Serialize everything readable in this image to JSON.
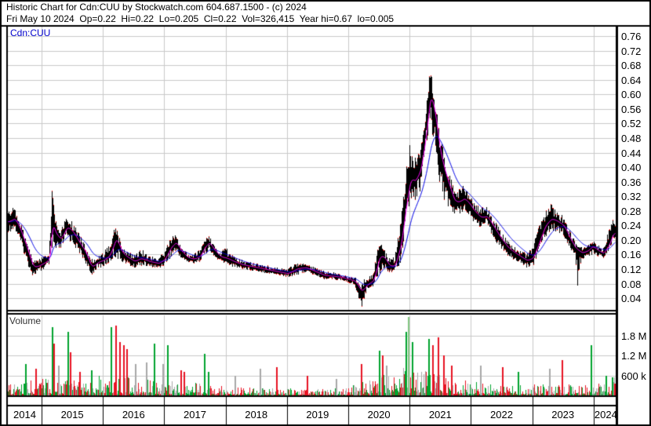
{
  "header": {
    "line1": "Historic Chart for Cdn:CUU by Stockwatch.com 604.687.1500 - (c) 2024",
    "line2": "Fri May 10 2024  Op=0.22  Hi=0.22  Lo=0.205  Cl=0.22  Vol=326,415  Year hi=0.67  lo=0.005"
  },
  "price_panel": {
    "symbol_label": "Cdn:CUU",
    "tick_labels": [
      "0.76",
      "0.72",
      "0.68",
      "0.64",
      "0.60",
      "0.56",
      "0.52",
      "0.48",
      "0.44",
      "0.40",
      "0.36",
      "0.32",
      "0.28",
      "0.24",
      "0.20",
      "0.16",
      "0.12",
      "0.08",
      "0.04"
    ]
  },
  "volume_panel": {
    "label": "Volume",
    "tick_labels": [
      "1.8 M",
      "1.2 M",
      "600 k"
    ]
  },
  "x_axis": {
    "years": [
      "2014",
      "2015",
      "2016",
      "2017",
      "2018",
      "2019",
      "2020",
      "2021",
      "2022",
      "2023",
      "2024"
    ]
  },
  "colors": {
    "grid": "#c9c9c9",
    "border": "#000000",
    "bar": "#000000",
    "close_tick": "#ff0000",
    "ma_fast": "#ff00ff",
    "ma_slow": "#0000e6",
    "vol_green": "#00a32e",
    "vol_red": "#e81222",
    "vol_gray": "#a8a8a8",
    "vol_lightgreen": "#84c883",
    "symbol": "#0000cc"
  },
  "chart_data": {
    "type": "ohlc-with-volume",
    "title": "Historic Chart for Cdn:CUU by Stockwatch.com 604.687.1500 - (c) 2024",
    "last_bar": {
      "date": "Fri May 10 2024",
      "open": 0.22,
      "high": 0.22,
      "low": 0.205,
      "close": 0.22,
      "volume": 326415,
      "year_hi": 0.67,
      "year_lo": 0.005
    },
    "x_axis": {
      "unit": "decimal_year",
      "start": 2014.45,
      "end": 2024.37,
      "year_gridlines": [
        2015,
        2016,
        2017,
        2018,
        2019,
        2020,
        2021,
        2022,
        2023,
        2024
      ]
    },
    "price_axis": {
      "min": 0,
      "max": 0.78,
      "grid_step": 0.04,
      "gridlines_top_to_bottom": [
        0.76,
        0.72,
        0.68,
        0.64,
        0.6,
        0.56,
        0.52,
        0.48,
        0.44,
        0.4,
        0.36,
        0.32,
        0.28,
        0.24,
        0.2,
        0.16,
        0.12,
        0.08,
        0.04
      ]
    },
    "volume_axis": {
      "min": 0,
      "max": 2400000,
      "gridlines": [
        1800000,
        1200000,
        600000
      ],
      "labels": [
        "1.8 M",
        "1.2 M",
        "600 k"
      ]
    },
    "series": {
      "price_sampled": {
        "columns": [
          "t",
          "close",
          "low",
          "high"
        ],
        "points": [
          [
            2014.45,
            0.25,
            0.22,
            0.28
          ],
          [
            2014.55,
            0.26,
            0.23,
            0.29
          ],
          [
            2014.65,
            0.22,
            0.19,
            0.25
          ],
          [
            2014.75,
            0.17,
            0.14,
            0.2
          ],
          [
            2014.85,
            0.12,
            0.1,
            0.15
          ],
          [
            2014.95,
            0.13,
            0.11,
            0.15
          ],
          [
            2015.05,
            0.14,
            0.12,
            0.16
          ],
          [
            2015.12,
            0.15,
            0.13,
            0.17
          ],
          [
            2015.17,
            0.28,
            0.14,
            0.365
          ],
          [
            2015.22,
            0.21,
            0.16,
            0.28
          ],
          [
            2015.3,
            0.2,
            0.17,
            0.23
          ],
          [
            2015.4,
            0.24,
            0.2,
            0.27
          ],
          [
            2015.5,
            0.22,
            0.19,
            0.25
          ],
          [
            2015.6,
            0.19,
            0.165,
            0.22
          ],
          [
            2015.7,
            0.165,
            0.14,
            0.19
          ],
          [
            2015.8,
            0.12,
            0.1,
            0.15
          ],
          [
            2015.9,
            0.14,
            0.12,
            0.16
          ],
          [
            2016.0,
            0.145,
            0.125,
            0.165
          ],
          [
            2016.1,
            0.16,
            0.135,
            0.19
          ],
          [
            2016.2,
            0.21,
            0.15,
            0.248
          ],
          [
            2016.3,
            0.16,
            0.14,
            0.19
          ],
          [
            2016.4,
            0.15,
            0.13,
            0.17
          ],
          [
            2016.5,
            0.14,
            0.12,
            0.16
          ],
          [
            2016.6,
            0.15,
            0.13,
            0.178
          ],
          [
            2016.75,
            0.14,
            0.125,
            0.158
          ],
          [
            2016.9,
            0.135,
            0.12,
            0.152
          ],
          [
            2017.0,
            0.15,
            0.13,
            0.17
          ],
          [
            2017.1,
            0.185,
            0.15,
            0.208
          ],
          [
            2017.18,
            0.195,
            0.165,
            0.215
          ],
          [
            2017.27,
            0.165,
            0.148,
            0.185
          ],
          [
            2017.37,
            0.15,
            0.138,
            0.165
          ],
          [
            2017.47,
            0.147,
            0.135,
            0.16
          ],
          [
            2017.57,
            0.155,
            0.14,
            0.175
          ],
          [
            2017.65,
            0.185,
            0.155,
            0.208
          ],
          [
            2017.72,
            0.195,
            0.17,
            0.215
          ],
          [
            2017.8,
            0.17,
            0.15,
            0.19
          ],
          [
            2017.9,
            0.152,
            0.14,
            0.167
          ],
          [
            2018.0,
            0.15,
            0.133,
            0.18
          ],
          [
            2018.12,
            0.14,
            0.126,
            0.156
          ],
          [
            2018.25,
            0.132,
            0.12,
            0.147
          ],
          [
            2018.4,
            0.127,
            0.116,
            0.14
          ],
          [
            2018.55,
            0.122,
            0.112,
            0.136
          ],
          [
            2018.7,
            0.117,
            0.107,
            0.13
          ],
          [
            2018.85,
            0.112,
            0.102,
            0.126
          ],
          [
            2019.0,
            0.107,
            0.097,
            0.12
          ],
          [
            2019.15,
            0.122,
            0.103,
            0.136
          ],
          [
            2019.3,
            0.124,
            0.11,
            0.136
          ],
          [
            2019.45,
            0.112,
            0.102,
            0.126
          ],
          [
            2019.6,
            0.102,
            0.092,
            0.116
          ],
          [
            2019.75,
            0.1,
            0.091,
            0.111
          ],
          [
            2019.9,
            0.096,
            0.087,
            0.108
          ],
          [
            2020.0,
            0.091,
            0.082,
            0.101
          ],
          [
            2020.1,
            0.086,
            0.076,
            0.098
          ],
          [
            2020.2,
            0.055,
            0.005,
            0.09
          ],
          [
            2020.3,
            0.08,
            0.062,
            0.094
          ],
          [
            2020.4,
            0.09,
            0.072,
            0.108
          ],
          [
            2020.5,
            0.165,
            0.1,
            0.198
          ],
          [
            2020.58,
            0.15,
            0.122,
            0.178
          ],
          [
            2020.66,
            0.125,
            0.11,
            0.15
          ],
          [
            2020.75,
            0.13,
            0.112,
            0.158
          ],
          [
            2020.85,
            0.2,
            0.134,
            0.25
          ],
          [
            2020.92,
            0.3,
            0.22,
            0.38
          ],
          [
            2021.0,
            0.38,
            0.3,
            0.475
          ],
          [
            2021.08,
            0.36,
            0.305,
            0.43
          ],
          [
            2021.17,
            0.4,
            0.335,
            0.46
          ],
          [
            2021.25,
            0.5,
            0.41,
            0.575
          ],
          [
            2021.33,
            0.62,
            0.52,
            0.665
          ],
          [
            2021.4,
            0.54,
            0.46,
            0.625
          ],
          [
            2021.48,
            0.43,
            0.36,
            0.5
          ],
          [
            2021.56,
            0.38,
            0.31,
            0.44
          ],
          [
            2021.64,
            0.34,
            0.285,
            0.39
          ],
          [
            2021.72,
            0.3,
            0.265,
            0.345
          ],
          [
            2021.8,
            0.305,
            0.27,
            0.345
          ],
          [
            2021.88,
            0.315,
            0.28,
            0.35
          ],
          [
            2021.95,
            0.3,
            0.27,
            0.33
          ],
          [
            2022.05,
            0.275,
            0.245,
            0.305
          ],
          [
            2022.15,
            0.26,
            0.232,
            0.29
          ],
          [
            2022.25,
            0.265,
            0.238,
            0.295
          ],
          [
            2022.35,
            0.235,
            0.21,
            0.262
          ],
          [
            2022.48,
            0.2,
            0.175,
            0.228
          ],
          [
            2022.6,
            0.175,
            0.153,
            0.198
          ],
          [
            2022.75,
            0.158,
            0.14,
            0.18
          ],
          [
            2022.9,
            0.142,
            0.124,
            0.165
          ],
          [
            2023.0,
            0.152,
            0.125,
            0.18
          ],
          [
            2023.1,
            0.2,
            0.16,
            0.24
          ],
          [
            2023.2,
            0.245,
            0.205,
            0.278
          ],
          [
            2023.3,
            0.26,
            0.225,
            0.3
          ],
          [
            2023.4,
            0.25,
            0.222,
            0.278
          ],
          [
            2023.5,
            0.238,
            0.21,
            0.265
          ],
          [
            2023.6,
            0.2,
            0.175,
            0.228
          ],
          [
            2023.7,
            0.172,
            0.152,
            0.195
          ],
          [
            2023.73,
            0.17,
            0.065,
            0.19
          ],
          [
            2023.8,
            0.163,
            0.146,
            0.182
          ],
          [
            2023.9,
            0.172,
            0.15,
            0.19
          ],
          [
            2023.97,
            0.185,
            0.158,
            0.205
          ],
          [
            2024.05,
            0.17,
            0.155,
            0.188
          ],
          [
            2024.15,
            0.162,
            0.15,
            0.178
          ],
          [
            2024.25,
            0.195,
            0.162,
            0.23
          ],
          [
            2024.31,
            0.225,
            0.19,
            0.258
          ],
          [
            2024.36,
            0.22,
            0.202,
            0.24
          ]
        ]
      },
      "ma_fast": {
        "color_key": "ma_fast",
        "approx_span_days": 21
      },
      "ma_slow": {
        "color_key": "ma_slow",
        "approx_span_days": 100
      }
    },
    "volume": {
      "baseline_millions": [
        [
          2014.45,
          0.16
        ],
        [
          2015.0,
          0.24
        ],
        [
          2015.5,
          0.22
        ],
        [
          2016.0,
          0.28
        ],
        [
          2016.6,
          0.24
        ],
        [
          2017.0,
          0.22
        ],
        [
          2017.5,
          0.18
        ],
        [
          2018.0,
          0.12
        ],
        [
          2018.5,
          0.1
        ],
        [
          2019.0,
          0.1
        ],
        [
          2019.5,
          0.09
        ],
        [
          2020.0,
          0.11
        ],
        [
          2020.45,
          0.3
        ],
        [
          2020.9,
          0.38
        ],
        [
          2021.3,
          0.34
        ],
        [
          2021.8,
          0.22
        ],
        [
          2022.3,
          0.17
        ],
        [
          2022.9,
          0.14
        ],
        [
          2023.3,
          0.16
        ],
        [
          2023.8,
          0.14
        ],
        [
          2024.1,
          0.16
        ],
        [
          2024.36,
          0.28
        ]
      ],
      "spikes": {
        "columns": [
          "t",
          "millions",
          "color"
        ],
        "points": [
          [
            2014.73,
            0.95,
            "green"
          ],
          [
            2014.9,
            0.8,
            "red"
          ],
          [
            2015.16,
            2.05,
            "green"
          ],
          [
            2015.19,
            1.55,
            "red"
          ],
          [
            2015.27,
            0.9,
            "gray"
          ],
          [
            2015.42,
            1.9,
            "green"
          ],
          [
            2015.46,
            1.3,
            "red"
          ],
          [
            2015.62,
            0.7,
            "red"
          ],
          [
            2015.8,
            0.75,
            "green"
          ],
          [
            2016.13,
            2.05,
            "green"
          ],
          [
            2016.2,
            2.1,
            "red"
          ],
          [
            2016.27,
            1.6,
            "red"
          ],
          [
            2016.33,
            1.5,
            "red"
          ],
          [
            2016.38,
            1.4,
            "red"
          ],
          [
            2016.52,
            0.95,
            "gray"
          ],
          [
            2016.7,
            1.0,
            "gray"
          ],
          [
            2016.83,
            1.55,
            "green"
          ],
          [
            2016.97,
            0.95,
            "gray"
          ],
          [
            2017.05,
            1.5,
            "green"
          ],
          [
            2017.26,
            0.75,
            "red"
          ],
          [
            2017.32,
            0.7,
            "red"
          ],
          [
            2017.65,
            1.25,
            "green"
          ],
          [
            2017.71,
            0.7,
            "green"
          ],
          [
            2018.15,
            0.6,
            "gray"
          ],
          [
            2018.55,
            0.8,
            "gray"
          ],
          [
            2018.82,
            0.85,
            "red"
          ],
          [
            2019.32,
            0.6,
            "red"
          ],
          [
            2019.8,
            0.5,
            "gray"
          ],
          [
            2020.2,
            0.95,
            "red"
          ],
          [
            2020.5,
            1.35,
            "green"
          ],
          [
            2020.55,
            1.2,
            "red"
          ],
          [
            2020.62,
            0.9,
            "gray"
          ],
          [
            2020.93,
            1.9,
            "green"
          ],
          [
            2020.97,
            2.35,
            "lightgreen"
          ],
          [
            2021.04,
            1.6,
            "green"
          ],
          [
            2021.3,
            1.7,
            "green"
          ],
          [
            2021.37,
            1.5,
            "red"
          ],
          [
            2021.46,
            1.75,
            "red"
          ],
          [
            2021.55,
            1.2,
            "red"
          ],
          [
            2021.68,
            0.9,
            "red"
          ],
          [
            2022.15,
            0.9,
            "gray"
          ],
          [
            2022.5,
            0.85,
            "red"
          ],
          [
            2022.76,
            0.7,
            "green"
          ],
          [
            2023.27,
            0.8,
            "gray"
          ],
          [
            2023.48,
            1.05,
            "red"
          ],
          [
            2023.95,
            1.5,
            "green"
          ],
          [
            2024.2,
            0.6,
            "green"
          ],
          [
            2024.3,
            0.55,
            "green"
          ],
          [
            2024.34,
            0.35,
            "red"
          ]
        ]
      }
    }
  }
}
